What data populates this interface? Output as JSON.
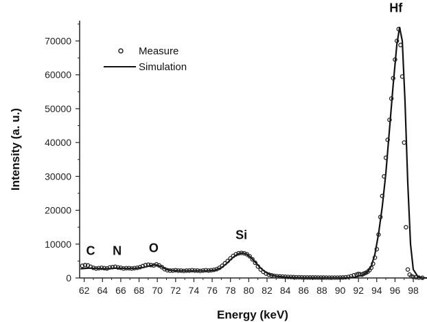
{
  "chart_data": {
    "type": "scatter",
    "xlabel": "Energy (keV)",
    "ylabel": "Intensity (a. u.)",
    "xlim": [
      61.5,
      99.5
    ],
    "ylim": [
      0,
      76000
    ],
    "x_ticks": [
      62,
      64,
      66,
      68,
      70,
      72,
      74,
      76,
      78,
      80,
      82,
      84,
      86,
      88,
      90,
      92,
      94,
      96,
      98
    ],
    "y_ticks": [
      0,
      10000,
      20000,
      30000,
      40000,
      50000,
      60000,
      70000
    ],
    "legend": {
      "position": "top-left",
      "entries": [
        "Measure",
        "Simulation"
      ]
    },
    "annotations": [
      {
        "text": "C",
        "x": 62.7,
        "y": 6800
      },
      {
        "text": "N",
        "x": 65.6,
        "y": 6800
      },
      {
        "text": "O",
        "x": 69.6,
        "y": 7600
      },
      {
        "text": "Si",
        "x": 79.2,
        "y": 11500
      },
      {
        "text": "Hf",
        "x": 96.1,
        "y": 78500
      }
    ],
    "series": [
      {
        "name": "Measure",
        "marker": "open-circle",
        "color": "#222222",
        "x": [
          61.8,
          62.1,
          62.4,
          62.7,
          63.0,
          63.3,
          63.6,
          63.9,
          64.2,
          64.5,
          64.8,
          65.1,
          65.4,
          65.7,
          66.0,
          66.3,
          66.6,
          66.9,
          67.2,
          67.5,
          67.8,
          68.1,
          68.4,
          68.7,
          69.0,
          69.3,
          69.6,
          69.9,
          70.2,
          70.5,
          70.8,
          71.1,
          71.4,
          71.7,
          72.0,
          72.3,
          72.6,
          72.9,
          73.2,
          73.5,
          73.8,
          74.1,
          74.4,
          74.7,
          75.0,
          75.3,
          75.6,
          75.9,
          76.2,
          76.5,
          76.8,
          77.1,
          77.4,
          77.7,
          78.0,
          78.3,
          78.6,
          78.9,
          79.2,
          79.5,
          79.8,
          80.1,
          80.4,
          80.7,
          81.0,
          81.3,
          81.6,
          81.9,
          82.2,
          82.5,
          82.8,
          83.1,
          83.4,
          83.7,
          84.0,
          84.3,
          84.6,
          84.9,
          85.2,
          85.5,
          85.8,
          86.1,
          86.4,
          86.7,
          87.0,
          87.3,
          87.6,
          87.9,
          88.2,
          88.5,
          88.8,
          89.1,
          89.4,
          89.7,
          90.0,
          90.3,
          90.6,
          90.9,
          91.2,
          91.5,
          91.8,
          92.0,
          92.2,
          92.4,
          92.6,
          92.8,
          93.0,
          93.2,
          93.4,
          93.6,
          93.8,
          94.0,
          94.2,
          94.4,
          94.6,
          94.8,
          95.0,
          95.2,
          95.4,
          95.6,
          95.8,
          96.0,
          96.2,
          96.4,
          96.6,
          96.8,
          97.0,
          97.2,
          97.4,
          97.6,
          97.8,
          98.0,
          98.3,
          98.6,
          99.0
        ],
        "y": [
          3600,
          3800,
          3700,
          3300,
          3000,
          2800,
          2900,
          3000,
          2900,
          2800,
          3100,
          3200,
          3300,
          3100,
          3000,
          2800,
          2900,
          2900,
          2800,
          2900,
          3000,
          3200,
          3500,
          3800,
          3900,
          3800,
          3700,
          4000,
          3700,
          3200,
          2600,
          2300,
          2200,
          2200,
          2300,
          2200,
          2200,
          2100,
          2200,
          2200,
          2300,
          2200,
          2200,
          2100,
          2200,
          2300,
          2200,
          2300,
          2400,
          2600,
          3000,
          3600,
          4300,
          5000,
          5800,
          6500,
          7000,
          7300,
          7400,
          7300,
          7000,
          6400,
          5500,
          4500,
          3400,
          2500,
          1800,
          1300,
          1000,
          800,
          600,
          500,
          450,
          400,
          350,
          300,
          280,
          250,
          200,
          200,
          180,
          170,
          160,
          150,
          150,
          140,
          130,
          120,
          120,
          110,
          100,
          100,
          100,
          100,
          120,
          150,
          200,
          300,
          500,
          800,
          1000,
          1200,
          1100,
          1000,
          1300,
          1500,
          1800,
          2300,
          3000,
          4200,
          6000,
          8500,
          12800,
          18000,
          24200,
          30000,
          35500,
          40800,
          46700,
          53000,
          59000,
          64500,
          70000,
          73500,
          68800,
          59500,
          40000,
          15000,
          2500,
          1000,
          500,
          300,
          200,
          100,
          50
        ]
      },
      {
        "name": "Simulation",
        "marker": "line",
        "color": "#111111",
        "x": [
          61.6,
          62.5,
          63.5,
          64.5,
          65.5,
          66.5,
          67.5,
          68.5,
          69.2,
          69.8,
          70.4,
          71.0,
          71.6,
          72.5,
          73.5,
          74.5,
          75.5,
          76.3,
          77.0,
          77.6,
          78.2,
          78.8,
          79.3,
          79.8,
          80.3,
          80.8,
          81.3,
          81.8,
          82.3,
          83.0,
          84.0,
          85.0,
          86.0,
          88.0,
          90.0,
          91.0,
          91.6,
          92.0,
          92.5,
          93.0,
          93.4,
          93.8,
          94.2,
          94.6,
          95.0,
          95.4,
          95.8,
          96.2,
          96.5,
          96.8,
          97.1,
          97.4,
          97.7,
          98.0,
          98.5,
          99.0,
          99.5
        ],
        "y": [
          2700,
          2900,
          2800,
          2700,
          2900,
          2800,
          2800,
          3100,
          3600,
          3900,
          3400,
          2500,
          2200,
          2100,
          2100,
          2100,
          2100,
          2300,
          3000,
          4300,
          5900,
          7100,
          7400,
          7000,
          5900,
          4400,
          2900,
          1800,
          1000,
          500,
          250,
          120,
          60,
          30,
          30,
          80,
          250,
          500,
          900,
          1800,
          3500,
          7000,
          13000,
          21000,
          31000,
          44000,
          57000,
          69000,
          74000,
          70000,
          52000,
          28000,
          10000,
          2500,
          400,
          50,
          0
        ]
      }
    ]
  }
}
